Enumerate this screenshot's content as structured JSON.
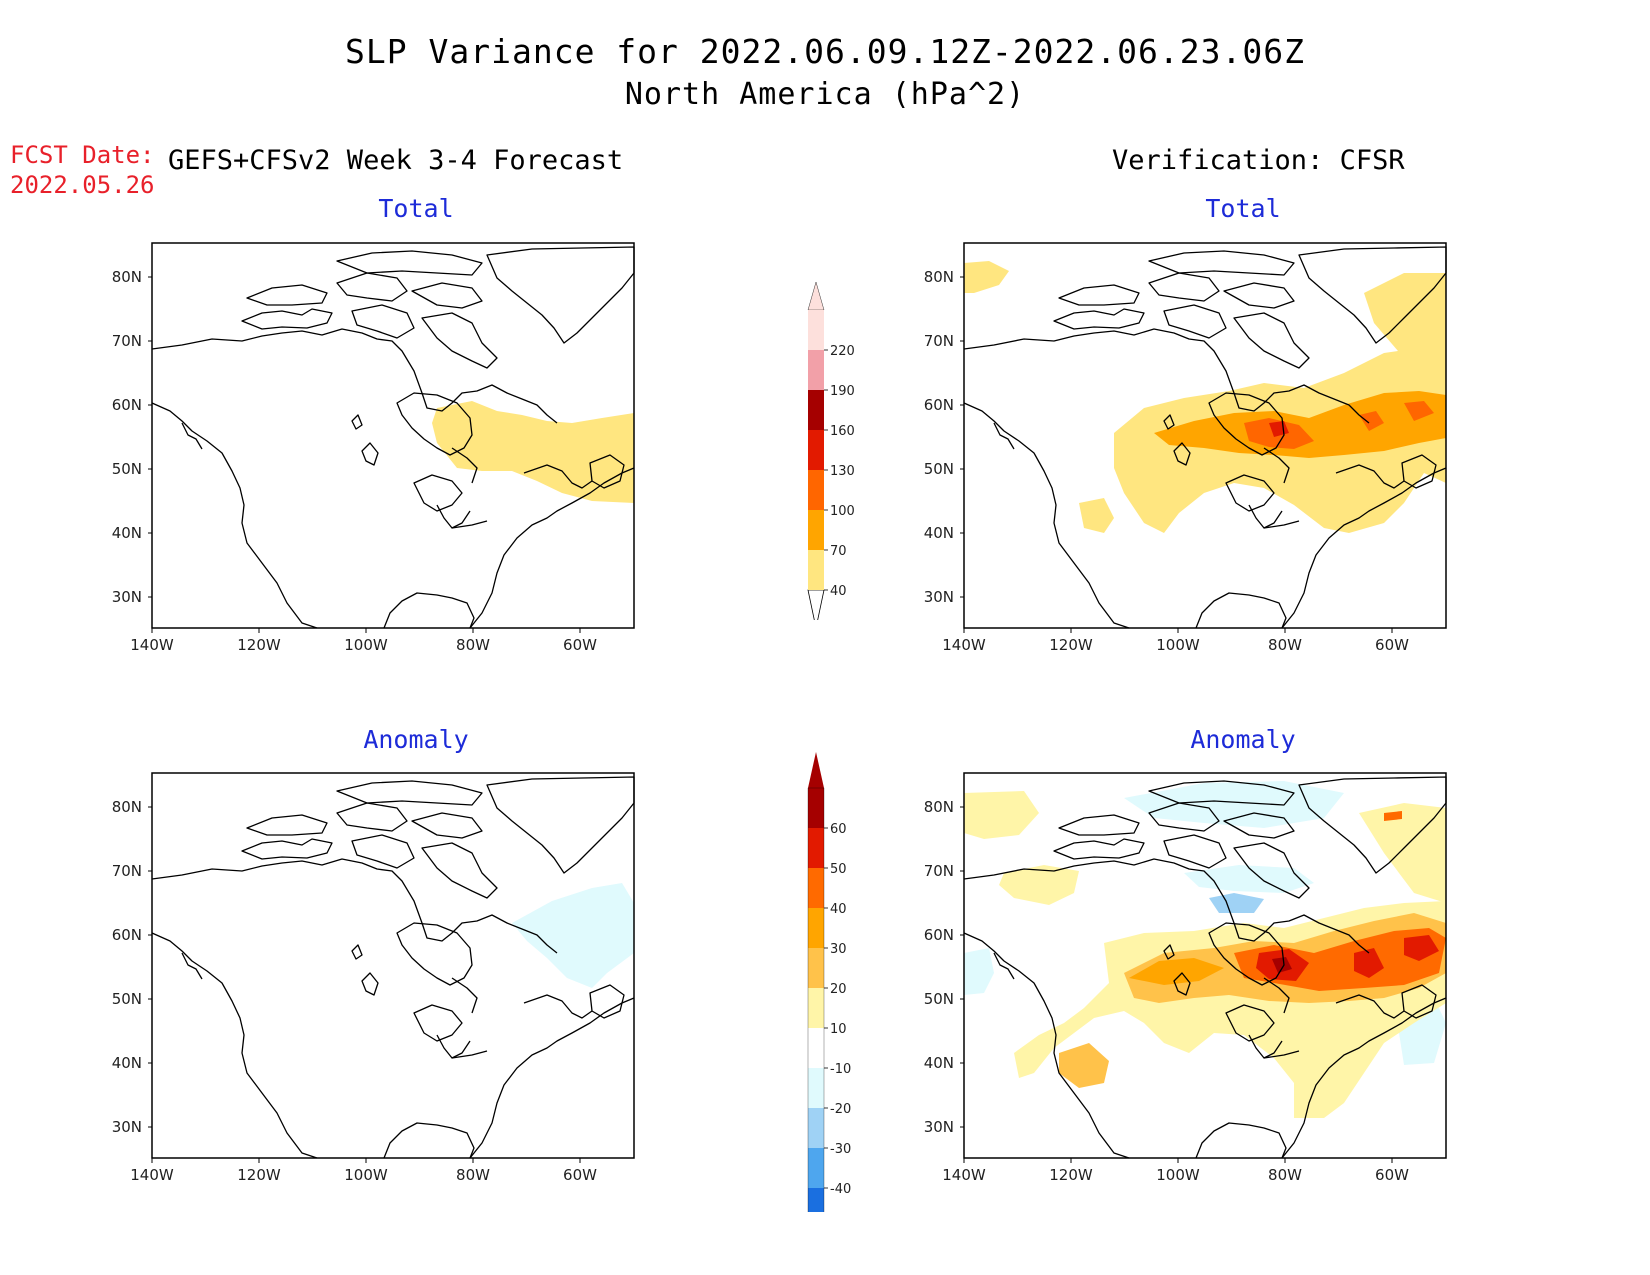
{
  "title": {
    "line1": "SLP Variance for 2022.06.09.12Z-2022.06.23.06Z",
    "line2": "North America (hPa^2)"
  },
  "fcst_date": {
    "label": "FCST Date:",
    "value": "2022.05.26"
  },
  "columns": {
    "forecast": "GEFS+CFSv2 Week 3-4 Forecast",
    "verification": "Verification: CFSR"
  },
  "panels": {
    "forecast_total": "Total",
    "forecast_anomaly": "Anomaly",
    "verification_total": "Total",
    "verification_anomaly": "Anomaly"
  },
  "axes": {
    "lat_labels": [
      "80N",
      "70N",
      "60N",
      "50N",
      "40N",
      "30N"
    ],
    "lon_labels": [
      "140W",
      "120W",
      "100W",
      "80W",
      "60W"
    ]
  },
  "colorbars": {
    "total": {
      "levels": [
        "40",
        "70",
        "100",
        "130",
        "160",
        "190",
        "220"
      ],
      "colors": [
        "#ffe680",
        "#ffa500",
        "#ff6600",
        "#e21a00",
        "#a50000",
        "#f2a0a8",
        "#fde0dc"
      ]
    },
    "anomaly": {
      "levels": [
        "60",
        "50",
        "40",
        "30",
        "20",
        "10",
        "-10",
        "-20",
        "-30",
        "-40"
      ],
      "colors": [
        "#a50000",
        "#e21a00",
        "#ff6a00",
        "#ffa500",
        "#ffc24a",
        "#fff5a8",
        "#ffffff",
        "#e0fafd",
        "#9fd2f5",
        "#4ea6ee",
        "#1a6fe0"
      ]
    }
  },
  "colors": {
    "fcst_text": "#e8202a",
    "subtitle_text": "#1d2bd8"
  }
}
